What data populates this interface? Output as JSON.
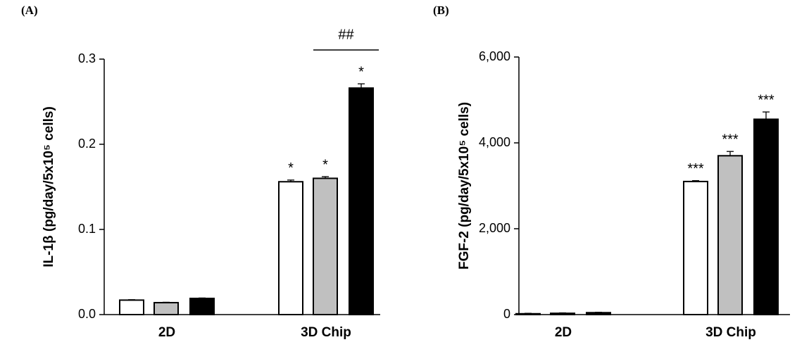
{
  "chart_data": [
    {
      "type": "bar",
      "panel": "(A)",
      "ylabel": "IL-1β (pg/day/5x10⁵ cells)",
      "categories": [
        "2D",
        "3D Chip"
      ],
      "series": [
        {
          "color": "#ffffff",
          "values": [
            0.017,
            0.156
          ],
          "errors": [
            0.0005,
            0.002
          ],
          "annotations": [
            null,
            "*"
          ]
        },
        {
          "color": "#c0c0c0",
          "values": [
            0.014,
            0.16
          ],
          "errors": [
            0.0005,
            0.002
          ],
          "annotations": [
            null,
            "*"
          ]
        },
        {
          "color": "#000000",
          "values": [
            0.019,
            0.266
          ],
          "errors": [
            0.0005,
            0.005
          ],
          "annotations": [
            null,
            "*"
          ]
        }
      ],
      "bracket": {
        "label": "##"
      },
      "ylim": [
        0,
        0.3
      ],
      "yticks": [
        {
          "value": 0,
          "label": "0.0"
        },
        0.1,
        0.2,
        0.3
      ]
    },
    {
      "type": "bar",
      "panel": "(B)",
      "ylabel": "FGF-2 (pg/day/5x10⁵ cells)",
      "categories": [
        "2D",
        "3D Chip"
      ],
      "series": [
        {
          "color": "#ffffff",
          "values": [
            20,
            3100
          ],
          "errors": [
            10,
            20
          ],
          "annotations": [
            null,
            "***"
          ]
        },
        {
          "color": "#c0c0c0",
          "values": [
            30,
            3700
          ],
          "errors": [
            10,
            100
          ],
          "annotations": [
            null,
            "***"
          ]
        },
        {
          "color": "#000000",
          "values": [
            45,
            4550
          ],
          "errors": [
            10,
            170
          ],
          "annotations": [
            null,
            "***"
          ]
        }
      ],
      "ylim": [
        0,
        6000
      ],
      "yticks": [
        0,
        {
          "value": 2000,
          "label": "2,000"
        },
        {
          "value": 4000,
          "label": "4,000"
        },
        {
          "value": 6000,
          "label": "6,000"
        }
      ]
    }
  ]
}
